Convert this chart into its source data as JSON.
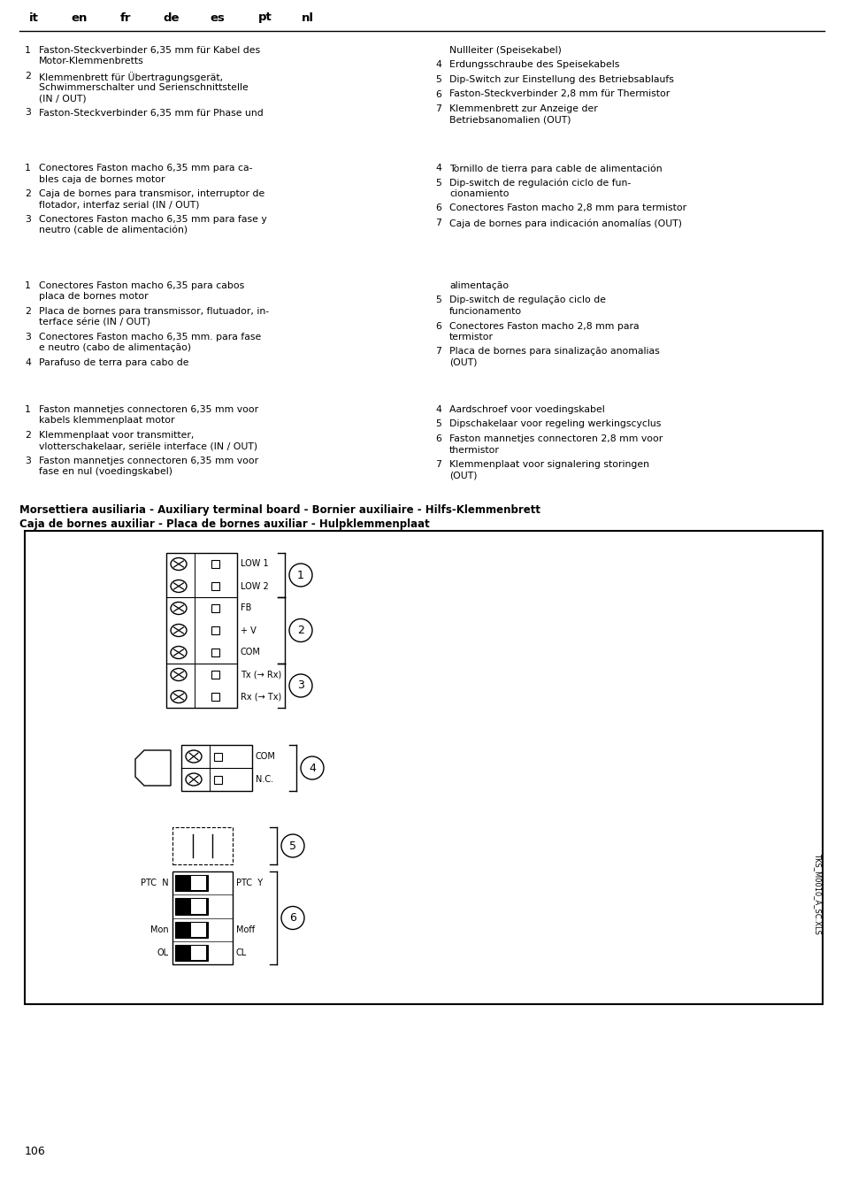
{
  "title_languages": [
    "it",
    "en",
    "fr",
    "de",
    "es",
    "pt",
    "nl"
  ],
  "section_bold_line1": "Morsettiera ausiliaria - Auxiliary terminal board - Bornier auxiliaire - Hilfs-Klemmenbrett",
  "section_bold_line2": "Caja de bornes auxiliar - Placa de bornes auxiliar - Hulpklemmenplaat",
  "page_number": "106",
  "watermark": "TKS_M0010_A_SC.XLS",
  "left_col": [
    {
      "lang": "de",
      "items": [
        {
          "num": "1",
          "text": "Faston-Steckverbinder 6,35 mm für Kabel des\nMotor-Klemmenbretts"
        },
        {
          "num": "2",
          "text": "Klemmenbrett für Übertragungsgerät,\nSchwimmerschalter und Serienschnittstelle\n(IN / OUT)"
        },
        {
          "num": "3",
          "text": "Faston-Steckverbinder 6,35 mm für Phase und"
        }
      ]
    },
    {
      "lang": "es",
      "items": [
        {
          "num": "1",
          "text": "Conectores Faston macho 6,35 mm para ca-\nbles caja de bornes motor"
        },
        {
          "num": "2",
          "text": "Caja de bornes para transmisor, interruptor de\nflotador, interfaz serial (IN / OUT)"
        },
        {
          "num": "3",
          "text": "Conectores Faston macho 6,35 mm para fase y\nneutro (cable de alimentación)"
        }
      ]
    },
    {
      "lang": "pt",
      "items": [
        {
          "num": "1",
          "text": "Conectores Faston macho 6,35 para cabos\nplaca de bornes motor"
        },
        {
          "num": "2",
          "text": "Placa de bornes para transmissor, flutuador, in-\nterface série (IN / OUT)"
        },
        {
          "num": "3",
          "text": "Conectores Faston macho 6,35 mm. para fase\ne neutro (cabo de alimentação)"
        },
        {
          "num": "4",
          "text": "Parafuso de terra para cabo de"
        }
      ]
    },
    {
      "lang": "nl",
      "items": [
        {
          "num": "1",
          "text": "Faston mannetjes connectoren 6,35 mm voor\nkabels klemmenplaat motor"
        },
        {
          "num": "2",
          "text": "Klemmenplaat voor transmitter,\nvlotterschakelaar, seriële interface (IN / OUT)"
        },
        {
          "num": "3",
          "text": "Faston mannetjes connectoren 6,35 mm voor\nfase en nul (voedingskabel)"
        }
      ]
    }
  ],
  "right_col": [
    {
      "lang": "de",
      "items": [
        {
          "num": "",
          "text": "Nullleiter (Speisekabel)"
        },
        {
          "num": "4",
          "text": "Erdungsschraube des Speisekabels"
        },
        {
          "num": "5",
          "text": "Dip-Switch zur Einstellung des Betriebsablaufs"
        },
        {
          "num": "6",
          "text": "Faston-Steckverbinder 2,8 mm für Thermistor"
        },
        {
          "num": "7",
          "text": "Klemmenbrett zur Anzeige der\nBetriebsanomalien (OUT)"
        }
      ]
    },
    {
      "lang": "es",
      "items": [
        {
          "num": "4",
          "text": "Tornillo de tierra para cable de alimentación"
        },
        {
          "num": "5",
          "text": "Dip-switch de regulación ciclo de fun-\ncionamiento"
        },
        {
          "num": "6",
          "text": "Conectores Faston macho 2,8 mm para termistor"
        },
        {
          "num": "7",
          "text": "Caja de bornes para indicación anomalías (OUT)"
        }
      ]
    },
    {
      "lang": "pt",
      "items": [
        {
          "num": "",
          "text": "alimentação"
        },
        {
          "num": "5",
          "text": "Dip-switch de regulação ciclo de\nfuncionamento"
        },
        {
          "num": "6",
          "text": "Conectores Faston macho 2,8 mm para\ntermistor"
        },
        {
          "num": "7",
          "text": "Placa de bornes para sinalização anomalias\n(OUT)"
        }
      ]
    },
    {
      "lang": "nl",
      "items": [
        {
          "num": "4",
          "text": "Aardschroef voor voedingskabel"
        },
        {
          "num": "5",
          "text": "Dipschakelaar voor regeling werkingscyclus"
        },
        {
          "num": "6",
          "text": "Faston mannetjes connectoren 2,8 mm voor\nthermistor"
        },
        {
          "num": "7",
          "text": "Klemmenplaat voor signalering storingen\n(OUT)"
        }
      ]
    }
  ],
  "diagram_labels_group1": [
    "LOW 1",
    "LOW 2",
    "FB",
    "+ V",
    "COM",
    "Tx (→ Rx)",
    "Rx (→ Tx)"
  ],
  "diagram_group1_circles": [
    "1",
    "2",
    "3"
  ],
  "diagram_labels_group2": [
    "COM",
    "N.C."
  ],
  "diagram_group2_circle": "4",
  "diagram_group5_circle": "5",
  "diagram_group6_circle": "6"
}
